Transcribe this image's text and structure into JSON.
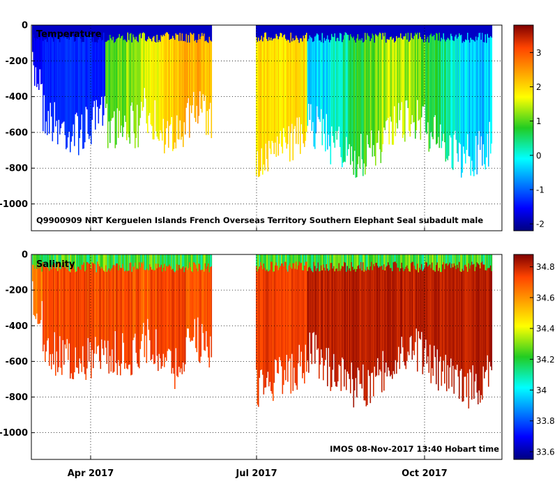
{
  "chart_data": [
    {
      "type": "heatmap",
      "title": "Temperature",
      "caption": "Q9900909 NRT Kerguelen Islands French Overseas Territory Southern Elephant Seal subadult male",
      "ylim": [
        -1150,
        0
      ],
      "yticks": [
        0,
        -200,
        -400,
        -600,
        -800,
        -1000
      ],
      "ytick_labels": [
        "0",
        "-200",
        "-400",
        "-600",
        "-800",
        "-1000"
      ],
      "xtick_labels": [
        "Apr 2017",
        "Jul 2017",
        "Oct 2017"
      ],
      "colorbar": {
        "range": [
          -2.2,
          3.8
        ],
        "ticks": [
          -2,
          -1,
          0,
          1,
          2,
          3
        ],
        "tick_labels": [
          "-2",
          "-1",
          "0",
          "1",
          "2",
          "3"
        ]
      }
    },
    {
      "type": "heatmap",
      "title": "Salinity",
      "caption": "IMOS 08-Nov-2017 13:40 Hobart time",
      "ylim": [
        -1150,
        0
      ],
      "yticks": [
        0,
        -200,
        -400,
        -600,
        -800,
        -1000
      ],
      "ytick_labels": [
        "0",
        "-200",
        "-400",
        "-600",
        "-800",
        "-1000"
      ],
      "xtick_labels": [
        "Apr 2017",
        "Jul 2017",
        "Oct 2017"
      ],
      "colorbar": {
        "range": [
          33.55,
          34.88
        ],
        "ticks": [
          33.6,
          33.8,
          34,
          34.2,
          34.4,
          34.6,
          34.8
        ],
        "tick_labels": [
          "33.6",
          "33.8",
          "34",
          "34.2",
          "34.4",
          "34.6",
          "34.8"
        ]
      }
    }
  ]
}
